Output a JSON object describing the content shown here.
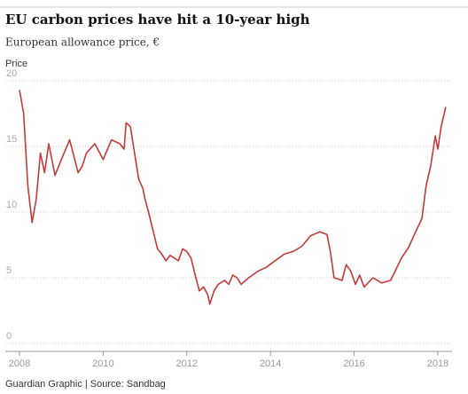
{
  "chart_data": {
    "type": "line",
    "title": "EU carbon prices have hit a 10-year high",
    "subtitle": "European allowance price, €",
    "y_label": "Price",
    "source": "Guardian Graphic | Source: Sandbag",
    "xlim": [
      2008,
      2018.34
    ],
    "ylim": [
      0,
      20
    ],
    "xticks": [
      2008,
      2010,
      2012,
      2014,
      2016,
      2018
    ],
    "yticks": [
      0,
      5,
      10,
      15,
      20
    ],
    "grid": true,
    "series": [
      {
        "color": "#c4393a",
        "x": [
          2008.0,
          2008.1,
          2008.2,
          2008.3,
          2008.4,
          2008.5,
          2008.6,
          2008.7,
          2008.85,
          2009.0,
          2009.2,
          2009.4,
          2009.5,
          2009.6,
          2009.8,
          2010.0,
          2010.2,
          2010.4,
          2010.5,
          2010.55,
          2010.65,
          2010.75,
          2010.85,
          2010.95,
          2011.0,
          2011.1,
          2011.2,
          2011.3,
          2011.4,
          2011.5,
          2011.6,
          2011.8,
          2011.9,
          2012.0,
          2012.1,
          2012.2,
          2012.3,
          2012.4,
          2012.5,
          2012.55,
          2012.65,
          2012.75,
          2012.9,
          2013.0,
          2013.1,
          2013.2,
          2013.3,
          2013.48,
          2013.7,
          2013.9,
          2014.11,
          2014.33,
          2014.54,
          2014.75,
          2014.96,
          2015.18,
          2015.35,
          2015.43,
          2015.52,
          2015.71,
          2015.81,
          2015.92,
          2016.03,
          2016.13,
          2016.24,
          2016.45,
          2016.66,
          2016.87,
          2016.98,
          2017.13,
          2017.3,
          2017.47,
          2017.62,
          2017.72,
          2017.83,
          2017.94,
          2018.0,
          2018.08,
          2018.19
        ],
        "values": [
          19.3,
          17.5,
          12,
          9.2,
          11,
          14.5,
          13,
          15.2,
          12.8,
          14,
          15.5,
          13,
          13.5,
          14.5,
          15.2,
          14,
          15.5,
          15.2,
          14.8,
          16.8,
          16.5,
          14.5,
          12.5,
          11.8,
          11,
          9.8,
          8.5,
          7.2,
          6.8,
          6.3,
          6.7,
          6.3,
          7.2,
          7.0,
          6.5,
          5.2,
          4.0,
          4.3,
          3.7,
          3.0,
          4.0,
          4.5,
          4.8,
          4.5,
          5.2,
          5.0,
          4.5,
          5.0,
          5.5,
          5.8,
          6.3,
          6.8,
          7.0,
          7.4,
          8.2,
          8.5,
          8.3,
          7.0,
          5.0,
          4.8,
          6.0,
          5.5,
          4.5,
          5.2,
          4.3,
          5.0,
          4.6,
          4.8,
          5.5,
          6.5,
          7.3,
          8.5,
          9.5,
          12,
          13.5,
          15.8,
          14.8,
          16.5,
          18
        ]
      }
    ]
  }
}
